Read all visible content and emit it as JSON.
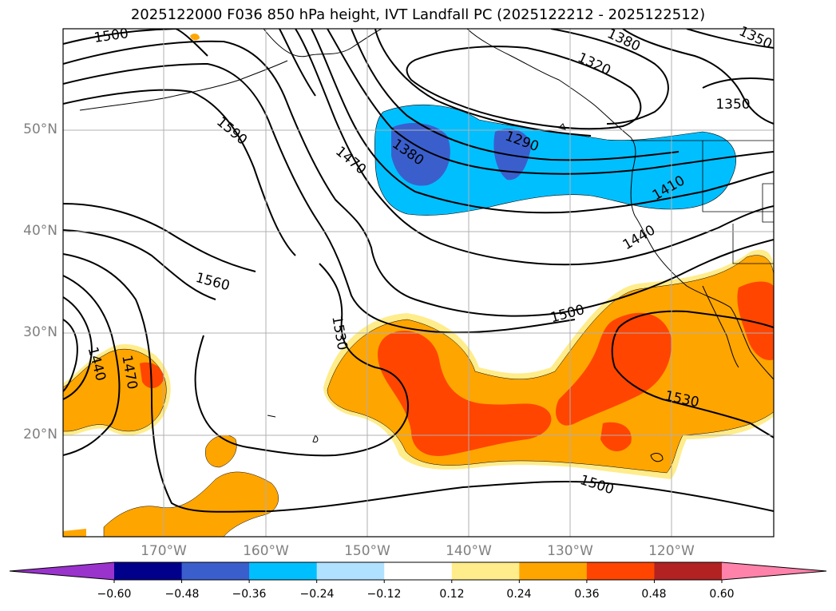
{
  "title": "2025122000 F036 850 hPa height, IVT Landfall PC (2025122212 - 2025122512)",
  "map": {
    "lat_labels": [
      "50°N",
      "40°N",
      "30°N",
      "20°N"
    ],
    "lon_labels": [
      "170°W",
      "160°W",
      "150°W",
      "140°W",
      "130°W",
      "120°W"
    ],
    "contour_labels": [
      "1500",
      "1590",
      "1470",
      "1380",
      "1290",
      "1320",
      "1380",
      "1350",
      "1350",
      "1410",
      "1440",
      "1560",
      "1500",
      "1530",
      "1440",
      "1470",
      "1530",
      "1500"
    ]
  },
  "colorbar": {
    "ticks": [
      "−0.60",
      "−0.48",
      "−0.36",
      "−0.24",
      "−0.12",
      "0.12",
      "0.24",
      "0.36",
      "0.48",
      "0.60"
    ],
    "colors": [
      "#9933cc",
      "#00008b",
      "#3a5fcd",
      "#00bfff",
      "#b0e2ff",
      "#ffffff",
      "#ffec8b",
      "#ffa500",
      "#ff4500",
      "#b22222",
      "#ff82ab"
    ]
  }
}
